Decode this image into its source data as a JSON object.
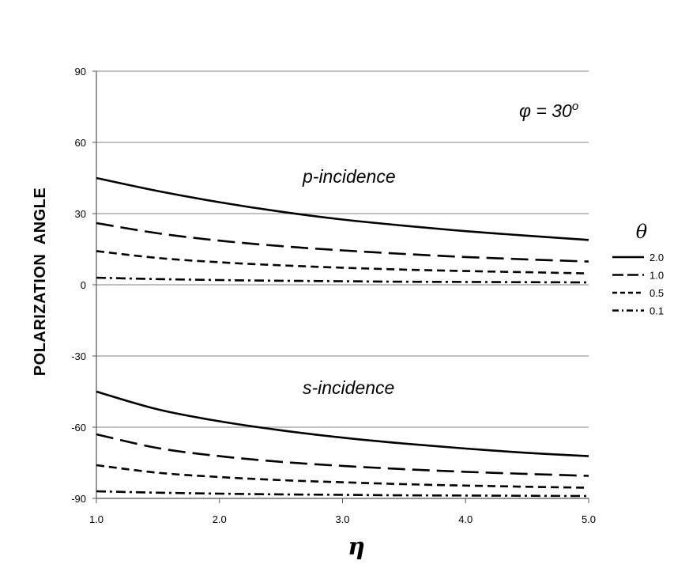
{
  "chart_data": {
    "type": "line",
    "title": "",
    "xlabel": "η",
    "ylabel": "POLARIZATION  ANGLE",
    "xlim": [
      1.0,
      5.0
    ],
    "ylim": [
      -90,
      90
    ],
    "x_ticks": [
      "1.0",
      "2.0",
      "3.0",
      "4.0",
      "5.0"
    ],
    "y_ticks": [
      "90",
      "60",
      "30",
      "0",
      "-30",
      "-60",
      "-90"
    ],
    "grid": "horizontal",
    "legend": {
      "title": "θ",
      "position": "right",
      "entries": [
        "2.0",
        "1.0",
        "0.5",
        "0.1"
      ]
    },
    "annotations": {
      "phi": {
        "text": "φ = 30",
        "superscript": "o"
      },
      "p_incidence": "p-incidence",
      "s_incidence": "s-incidence"
    },
    "x": [
      1.0,
      1.5,
      2.0,
      2.5,
      3.0,
      3.5,
      4.0,
      4.5,
      5.0
    ],
    "series": [
      {
        "group": "p-incidence",
        "theta": "2.0",
        "dash": "solid",
        "values": [
          45.0,
          39.5,
          34.8,
          30.8,
          27.5,
          24.9,
          22.6,
          20.7,
          18.9
        ]
      },
      {
        "group": "p-incidence",
        "theta": "1.0",
        "dash": "longdash",
        "values": [
          26.0,
          21.7,
          18.6,
          16.3,
          14.5,
          13.0,
          11.7,
          10.7,
          9.8
        ]
      },
      {
        "group": "p-incidence",
        "theta": "0.5",
        "dash": "shortdash",
        "values": [
          14.2,
          11.3,
          9.5,
          8.2,
          7.2,
          6.4,
          5.8,
          5.3,
          4.8
        ]
      },
      {
        "group": "p-incidence",
        "theta": "0.1",
        "dash": "dashdot",
        "values": [
          3.0,
          2.4,
          2.0,
          1.7,
          1.5,
          1.3,
          1.2,
          1.1,
          1.0
        ]
      },
      {
        "group": "s-incidence",
        "theta": "2.0",
        "dash": "solid",
        "values": [
          -45.0,
          -52.5,
          -57.5,
          -61.3,
          -64.4,
          -66.9,
          -69.0,
          -70.8,
          -72.2
        ]
      },
      {
        "group": "s-incidence",
        "theta": "1.0",
        "dash": "longdash",
        "values": [
          -63.0,
          -68.8,
          -72.2,
          -74.6,
          -76.3,
          -77.7,
          -78.8,
          -79.7,
          -80.5
        ]
      },
      {
        "group": "s-incidence",
        "theta": "0.5",
        "dash": "shortdash",
        "values": [
          -76.0,
          -79.2,
          -81.0,
          -82.3,
          -83.2,
          -84.0,
          -84.6,
          -85.1,
          -85.5
        ]
      },
      {
        "group": "s-incidence",
        "theta": "0.1",
        "dash": "dashdot",
        "values": [
          -87.0,
          -87.6,
          -88.0,
          -88.3,
          -88.5,
          -88.7,
          -88.8,
          -88.9,
          -89.0
        ]
      }
    ]
  }
}
